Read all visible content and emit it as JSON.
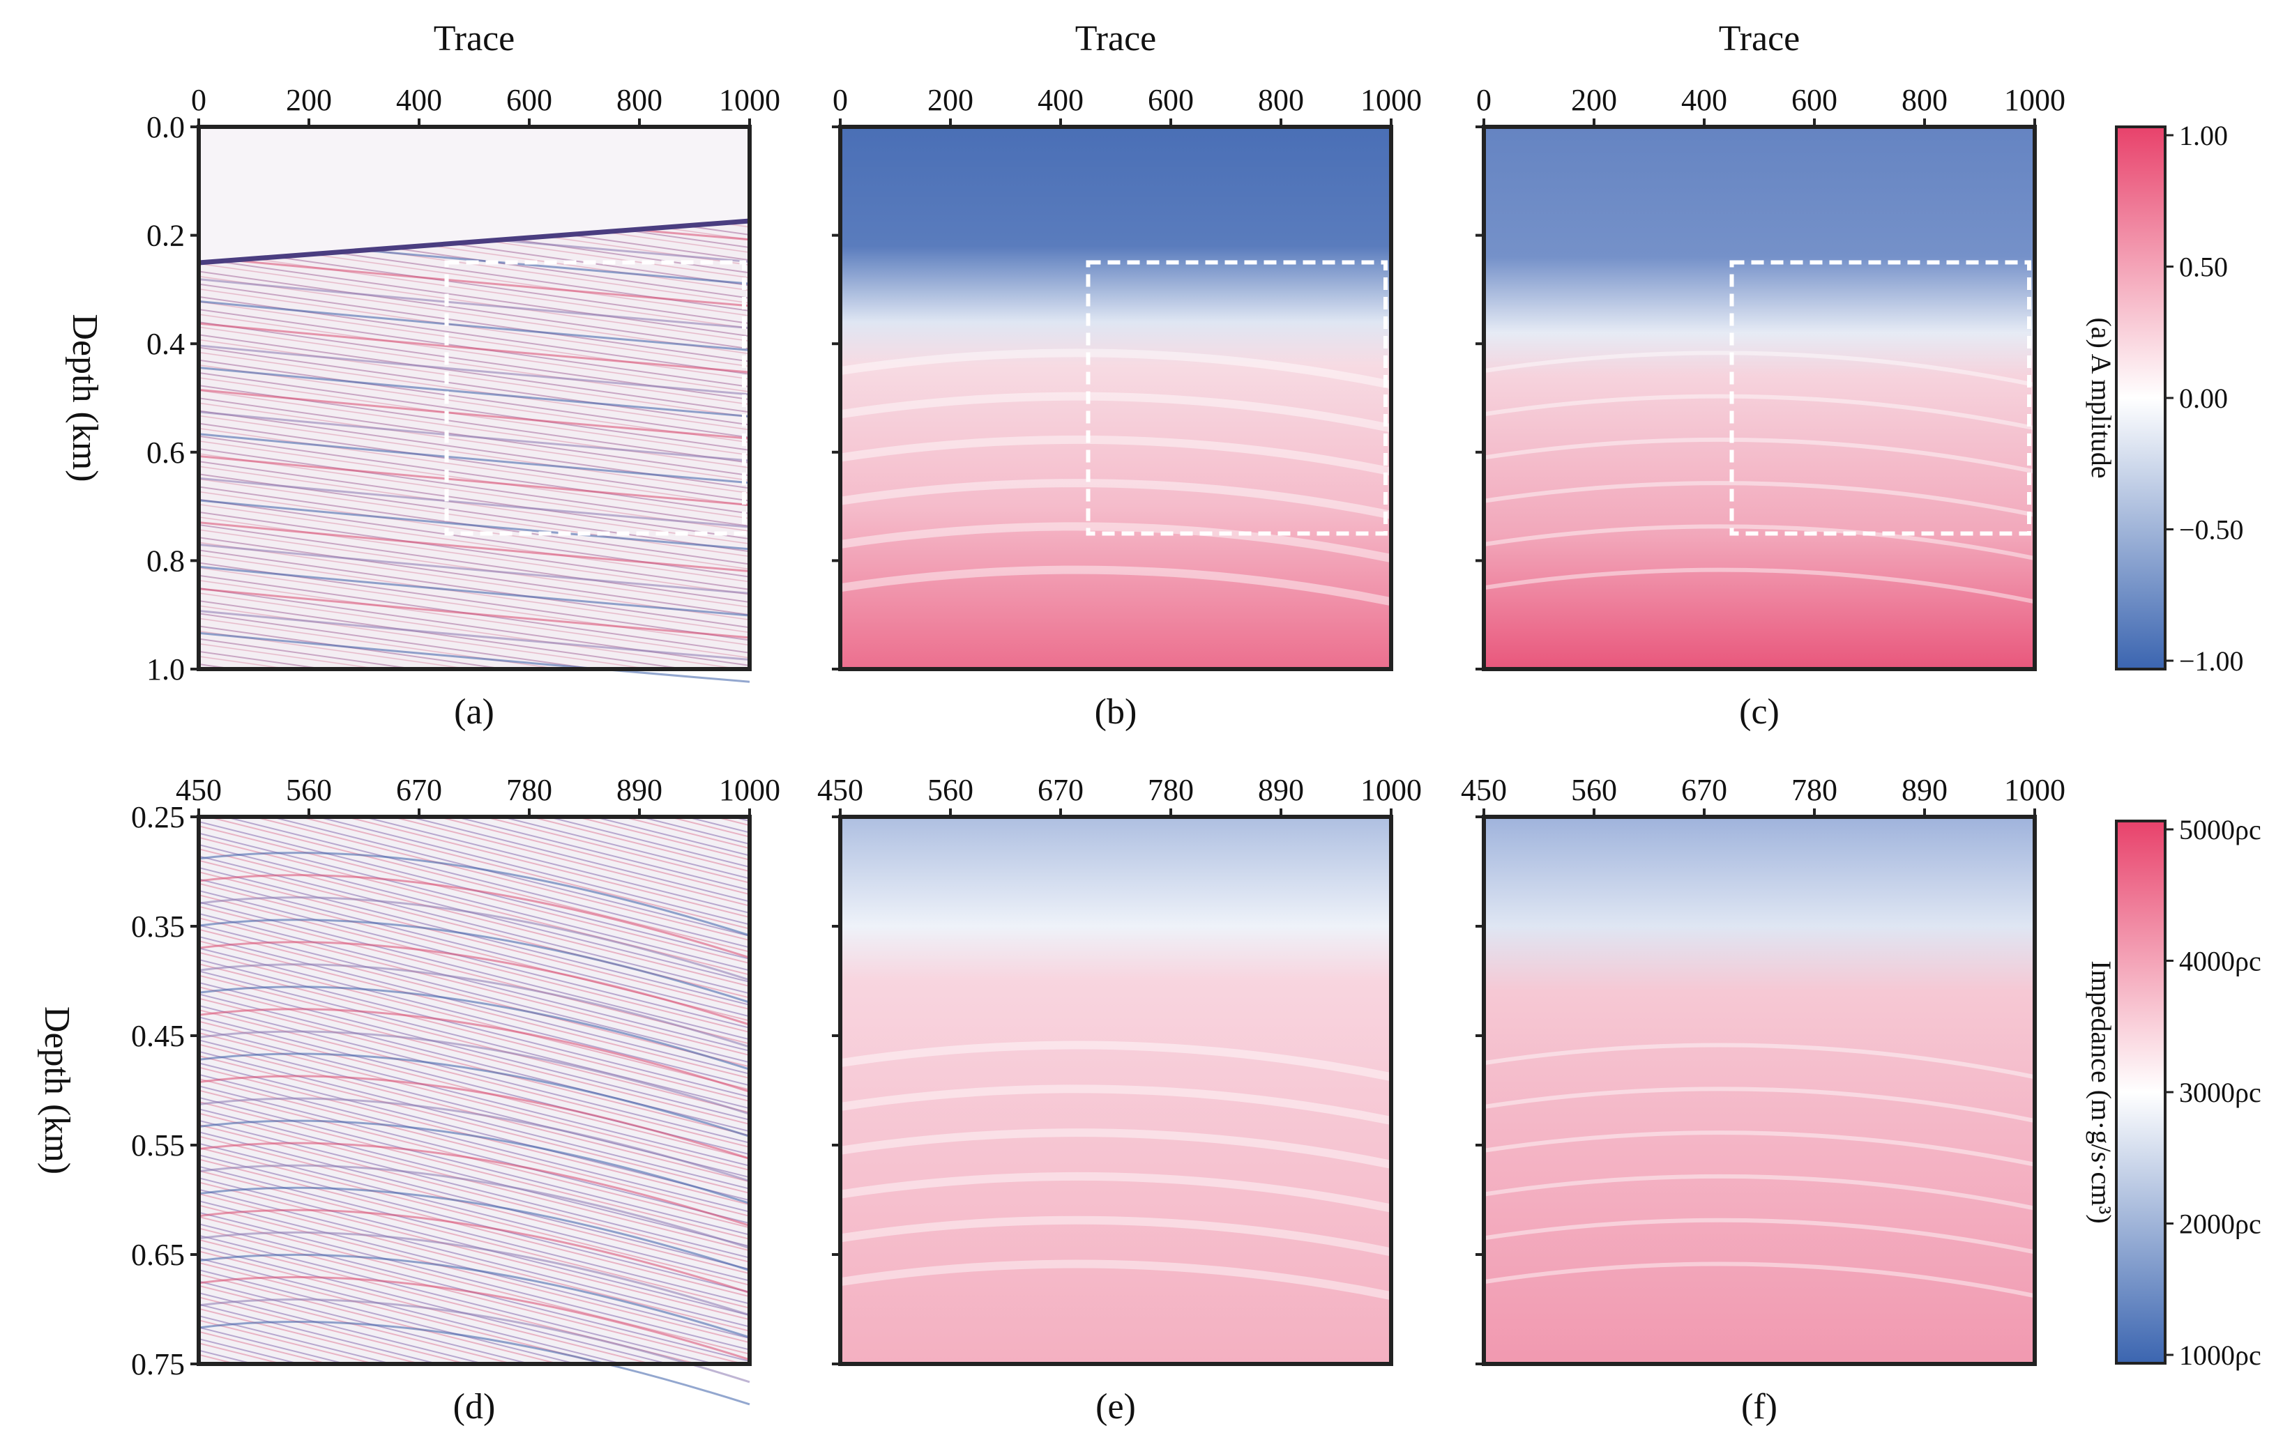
{
  "chart_data": [
    {
      "type": "heatmap",
      "panel": "(a)",
      "xlabel": "Trace",
      "ylabel": "Depth (km)",
      "xticks": [
        "0",
        "200",
        "400",
        "600",
        "800",
        "1000"
      ],
      "xlim": [
        0,
        1000
      ],
      "yticks": [
        "0.0",
        "0.2",
        "0.4",
        "0.6",
        "0.8",
        "1.0"
      ],
      "ylim": [
        0.0,
        1.0
      ],
      "content": "seismic amplitude",
      "zoom_box": {
        "x": [
          450,
          1000
        ],
        "y": [
          0.25,
          0.75
        ]
      }
    },
    {
      "type": "heatmap",
      "panel": "(b)",
      "xlabel": "Trace",
      "xticks": [
        "0",
        "200",
        "400",
        "600",
        "800",
        "1000"
      ],
      "xlim": [
        0,
        1000
      ],
      "ylim": [
        0.0,
        1.0
      ],
      "content": "smooth impedance",
      "zoom_box": {
        "x": [
          450,
          1000
        ],
        "y": [
          0.25,
          0.75
        ]
      }
    },
    {
      "type": "heatmap",
      "panel": "(c)",
      "xlabel": "Trace",
      "xticks": [
        "0",
        "200",
        "400",
        "600",
        "800",
        "1000"
      ],
      "xlim": [
        0,
        1000
      ],
      "ylim": [
        0.0,
        1.0
      ],
      "content": "detailed impedance",
      "zoom_box": {
        "x": [
          450,
          1000
        ],
        "y": [
          0.25,
          0.75
        ]
      }
    },
    {
      "type": "heatmap",
      "panel": "(d)",
      "ylabel": "Depth (km)",
      "xticks": [
        "450",
        "560",
        "670",
        "780",
        "890",
        "1000"
      ],
      "xlim": [
        450,
        1000
      ],
      "yticks": [
        "0.25",
        "0.35",
        "0.45",
        "0.55",
        "0.65",
        "0.75"
      ],
      "ylim": [
        0.25,
        0.75
      ],
      "content": "seismic amplitude"
    },
    {
      "type": "heatmap",
      "panel": "(e)",
      "xticks": [
        "450",
        "560",
        "670",
        "780",
        "890",
        "1000"
      ],
      "xlim": [
        450,
        1000
      ],
      "ylim": [
        0.25,
        0.75
      ],
      "content": "smooth impedance"
    },
    {
      "type": "heatmap",
      "panel": "(f)",
      "xticks": [
        "450",
        "560",
        "670",
        "780",
        "890",
        "1000"
      ],
      "xlim": [
        450,
        1000
      ],
      "ylim": [
        0.25,
        0.75
      ],
      "content": "detailed impedance"
    }
  ],
  "colorbars": [
    {
      "title": "(a)  A mplitude",
      "ticks": [
        "1.00",
        "0.50",
        "0.00",
        "−0.50",
        "−1.00"
      ],
      "range": [
        -1,
        1
      ]
    },
    {
      "title": "Impedance (m·g/s·cm³)",
      "ticks": [
        "5000ρc",
        "4000ρc",
        "3000ρc",
        "2000ρc",
        "1000ρc"
      ],
      "range": [
        1000,
        5000
      ]
    }
  ],
  "colors": {
    "low": "#3b65b0",
    "mid": "#ffffff",
    "high": "#e8426b"
  }
}
